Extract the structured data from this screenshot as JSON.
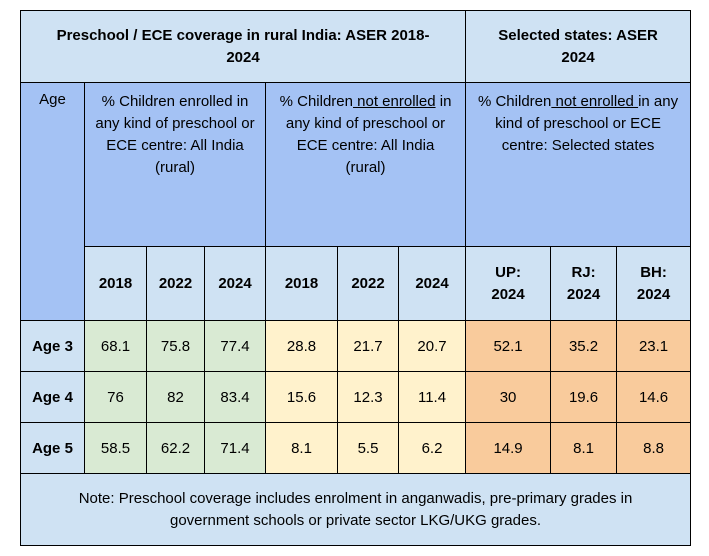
{
  "header": {
    "left_title": "Preschool / ECE coverage in rural India: ASER 2018-2024",
    "right_title": "Selected states: ASER 2024"
  },
  "columns": {
    "age": "Age",
    "enrolled": "% Children enrolled in any kind of preschool or ECE centre: All India (rural)",
    "not_enrolled_pre": "% Children",
    "not_enrolled_u": " not enrolled",
    "not_enrolled_post": " in any kind of preschool or ECE centre: All India (rural)",
    "states_pre": "% Children",
    "states_u": " not enrolled ",
    "states_post": "in any kind of preschool or ECE centre: Selected states"
  },
  "subheaders": {
    "e2018": "2018",
    "e2022": "2022",
    "e2024": "2024",
    "n2018": "2018",
    "n2022": "2022",
    "n2024": "2024",
    "up_a": "UP:",
    "up_b": "2024",
    "rj_a": "RJ:",
    "rj_b": "2024",
    "bh_a": "BH:",
    "bh_b": "2024"
  },
  "rows": [
    {
      "label": "Age 3",
      "e2018": "68.1",
      "e2022": "75.8",
      "e2024": "77.4",
      "n2018": "28.8",
      "n2022": "21.7",
      "n2024": "20.7",
      "up": "52.1",
      "rj": "35.2",
      "bh": "23.1"
    },
    {
      "label": "Age 4",
      "e2018": "76",
      "e2022": "82",
      "e2024": "83.4",
      "n2018": "15.6",
      "n2022": "12.3",
      "n2024": "11.4",
      "up": "30",
      "rj": "19.6",
      "bh": "14.6"
    },
    {
      "label": "Age 5",
      "e2018": "58.5",
      "e2022": "62.2",
      "e2024": "71.4",
      "n2018": "8.1",
      "n2022": "5.5",
      "n2024": "6.2",
      "up": "14.9",
      "rj": "8.1",
      "bh": "8.8"
    }
  ],
  "note": "Note: Preschool coverage includes enrolment in anganwadis, pre-primary grades in government schools or private sector LKG/UKG grades.",
  "colors": {
    "light_blue": "#cfe2f3",
    "mid_blue": "#a4c2f4",
    "green": "#d9ead3",
    "yellow": "#fff2cc",
    "orange": "#f9cb9c"
  }
}
